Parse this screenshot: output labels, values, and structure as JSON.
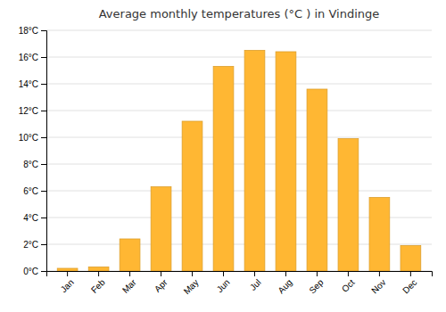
{
  "chart_data": {
    "type": "bar",
    "title": "Average monthly temperatures (°C ) in Vindinge",
    "categories": [
      "Jan",
      "Feb",
      "Mar",
      "Apr",
      "May",
      "Jun",
      "Jul",
      "Aug",
      "Sep",
      "Oct",
      "Nov",
      "Dec"
    ],
    "values": [
      0.2,
      0.3,
      2.4,
      6.3,
      11.2,
      15.3,
      16.5,
      16.4,
      13.6,
      9.9,
      5.5,
      1.9
    ],
    "color": "#FFB733",
    "ylim": [
      0,
      18
    ],
    "yticks": [
      {
        "value": 0,
        "label": "0°C"
      },
      {
        "value": 2,
        "label": "2°C"
      },
      {
        "value": 4,
        "label": "4°C"
      },
      {
        "value": 6,
        "label": "6°C"
      },
      {
        "value": 8,
        "label": "8°C"
      },
      {
        "value": 10,
        "label": "10°C"
      },
      {
        "value": 12,
        "label": "12°C"
      },
      {
        "value": 14,
        "label": "14°C"
      },
      {
        "value": 16,
        "label": "16°C"
      },
      {
        "value": 18,
        "label": "18°C"
      }
    ],
    "grid": true
  }
}
